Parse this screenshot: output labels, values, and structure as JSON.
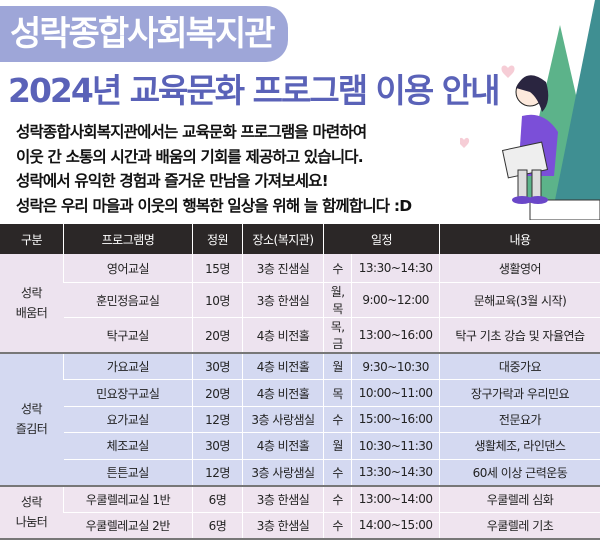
{
  "header": {
    "org": "성락종합사회복지관",
    "title": "2024년 교육문화 프로그램 이용 안내"
  },
  "intro": [
    "성락종합사회복지관에서는 교육문화 프로그램을 마련하여",
    "이웃 간 소통의 시간과 배움의 기회를 제공하고 있습니다.",
    "성락에서 유익한 경험과 즐거운 만남을 가져보세요!",
    "성락은 우리 마을과 이웃의 행복한 일상을 위해 늘 함께합니다 :D"
  ],
  "table": {
    "headers": [
      "구분",
      "프로그램명",
      "정원",
      "장소(복지관)",
      "일정",
      "내용"
    ],
    "groups": [
      {
        "name": "성락\n배움터",
        "rows": [
          [
            "영어교실",
            "15명",
            "3층 진샘실",
            "수",
            "13:30~14:30",
            "생활영어"
          ],
          [
            "훈민정음교실",
            "10명",
            "3층 한샘실",
            "월, 목",
            "9:00~12:00",
            "문해교육(3월 시작)"
          ],
          [
            "탁구교실",
            "20명",
            "4층 비전홀",
            "목, 금",
            "13:00~16:00",
            "탁구 기초 강습 및 자율연습"
          ]
        ]
      },
      {
        "name": "성락\n즐김터",
        "rows": [
          [
            "가요교실",
            "30명",
            "4층 비전홀",
            "월",
            "9:30~10:30",
            "대중가요"
          ],
          [
            "민요장구교실",
            "20명",
            "4층 비전홀",
            "목",
            "10:00~11:00",
            "장구가락과 우리민요"
          ],
          [
            "요가교실",
            "12명",
            "3층 사랑샘실",
            "수",
            "15:00~16:00",
            "전문요가"
          ],
          [
            "체조교실",
            "30명",
            "4층 비전홀",
            "월",
            "10:30~11:30",
            "생활체조, 라인댄스"
          ],
          [
            "튼튼교실",
            "12명",
            "3층 사랑샘실",
            "수",
            "13:30~14:30",
            "60세 이상 근력운동"
          ]
        ]
      },
      {
        "name": "성락\n나눔터",
        "rows": [
          [
            "우쿨렐레교실 1반",
            "6명",
            "3층 한샘실",
            "수",
            "13:00~14:00",
            "우쿨렐레 심화"
          ],
          [
            "우쿨렐레교실 2반",
            "6명",
            "3층 한샘실",
            "수",
            "14:00~15:00",
            "우쿨렐레 기초"
          ]
        ]
      }
    ]
  },
  "colors": {
    "header_bg": "#2b2727",
    "group1": "#ede3ef",
    "group2": "#d4d9f1",
    "group3": "#efe4ef",
    "title": "#5a62b8",
    "pill": "#9ea6d8"
  }
}
